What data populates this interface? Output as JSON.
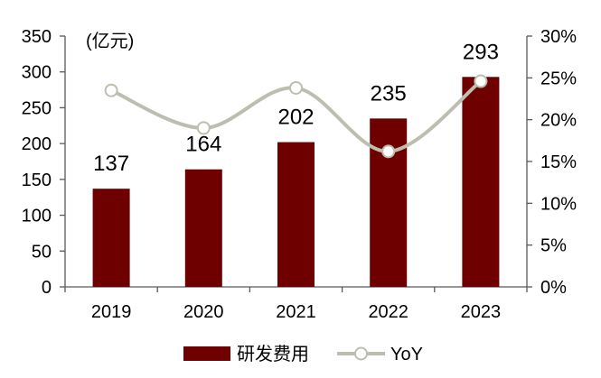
{
  "chart_data": {
    "type": "bar",
    "categories": [
      "2019",
      "2020",
      "2021",
      "2022",
      "2023"
    ],
    "series": [
      {
        "name": "研发费用",
        "type": "bar",
        "axis": "left",
        "values": [
          137,
          164,
          202,
          235,
          293
        ],
        "color": "#6E0000",
        "data_labels": true
      },
      {
        "name": "YoY",
        "type": "line",
        "axis": "right",
        "unit": "%",
        "values": [
          23.5,
          19.0,
          23.8,
          16.2,
          24.6
        ],
        "color": "#BEBEB0",
        "smooth": true,
        "marker": "hollow-circle"
      }
    ],
    "unit_label": "(亿元)",
    "y_left": {
      "lim": [
        0,
        350
      ],
      "ticks": [
        0,
        50,
        100,
        150,
        200,
        250,
        300,
        350
      ],
      "tick_labels": [
        "0",
        "50",
        "100",
        "150",
        "200",
        "250",
        "300",
        "350"
      ]
    },
    "y_right": {
      "lim": [
        0,
        30
      ],
      "ticks": [
        0,
        5,
        10,
        15,
        20,
        25,
        30
      ],
      "tick_labels": [
        "0%",
        "5%",
        "10%",
        "15%",
        "20%",
        "25%",
        "30%"
      ]
    },
    "grid": false,
    "legend_position": "bottom"
  }
}
